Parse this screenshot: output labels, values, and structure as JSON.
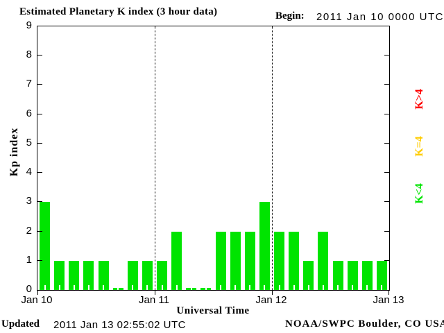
{
  "header": {
    "title": "Estimated Planetary K index (3 hour data)",
    "begin_label": "Begin:",
    "begin_value": "2011 Jan 10 0000 UTC"
  },
  "footer": {
    "updated_label": "Updated",
    "updated_value": "2011 Jan 13 02:55:02 UTC",
    "source": "NOAA/SWPC Boulder, CO USA"
  },
  "legend": [
    {
      "label": "K>4",
      "color": "#ff0000"
    },
    {
      "label": "K=4",
      "color": "#ffcc00"
    },
    {
      "label": "K<4",
      "color": "#00e400"
    }
  ],
  "chart_data": {
    "type": "bar",
    "title": "Estimated Planetary K index (3 hour data)",
    "xlabel": "Universal Time",
    "ylabel": "Kp index",
    "ylim": [
      0,
      9
    ],
    "yticks": [
      0,
      1,
      2,
      3,
      4,
      5,
      6,
      7,
      8,
      9
    ],
    "grid": "dotted vertical lines at day boundaries",
    "legend_position": "right, rotated",
    "interval_hours": 3,
    "bars_per_day": 8,
    "day_labels": [
      "Jan 10",
      "Jan 11",
      "Jan 12",
      "Jan 13"
    ],
    "bar_color": "#00e400",
    "values": [
      3,
      1,
      1,
      1,
      1,
      0,
      1,
      1,
      1,
      2,
      0,
      0,
      2,
      2,
      2,
      3,
      2,
      2,
      1,
      2,
      1,
      1,
      1,
      1
    ]
  }
}
